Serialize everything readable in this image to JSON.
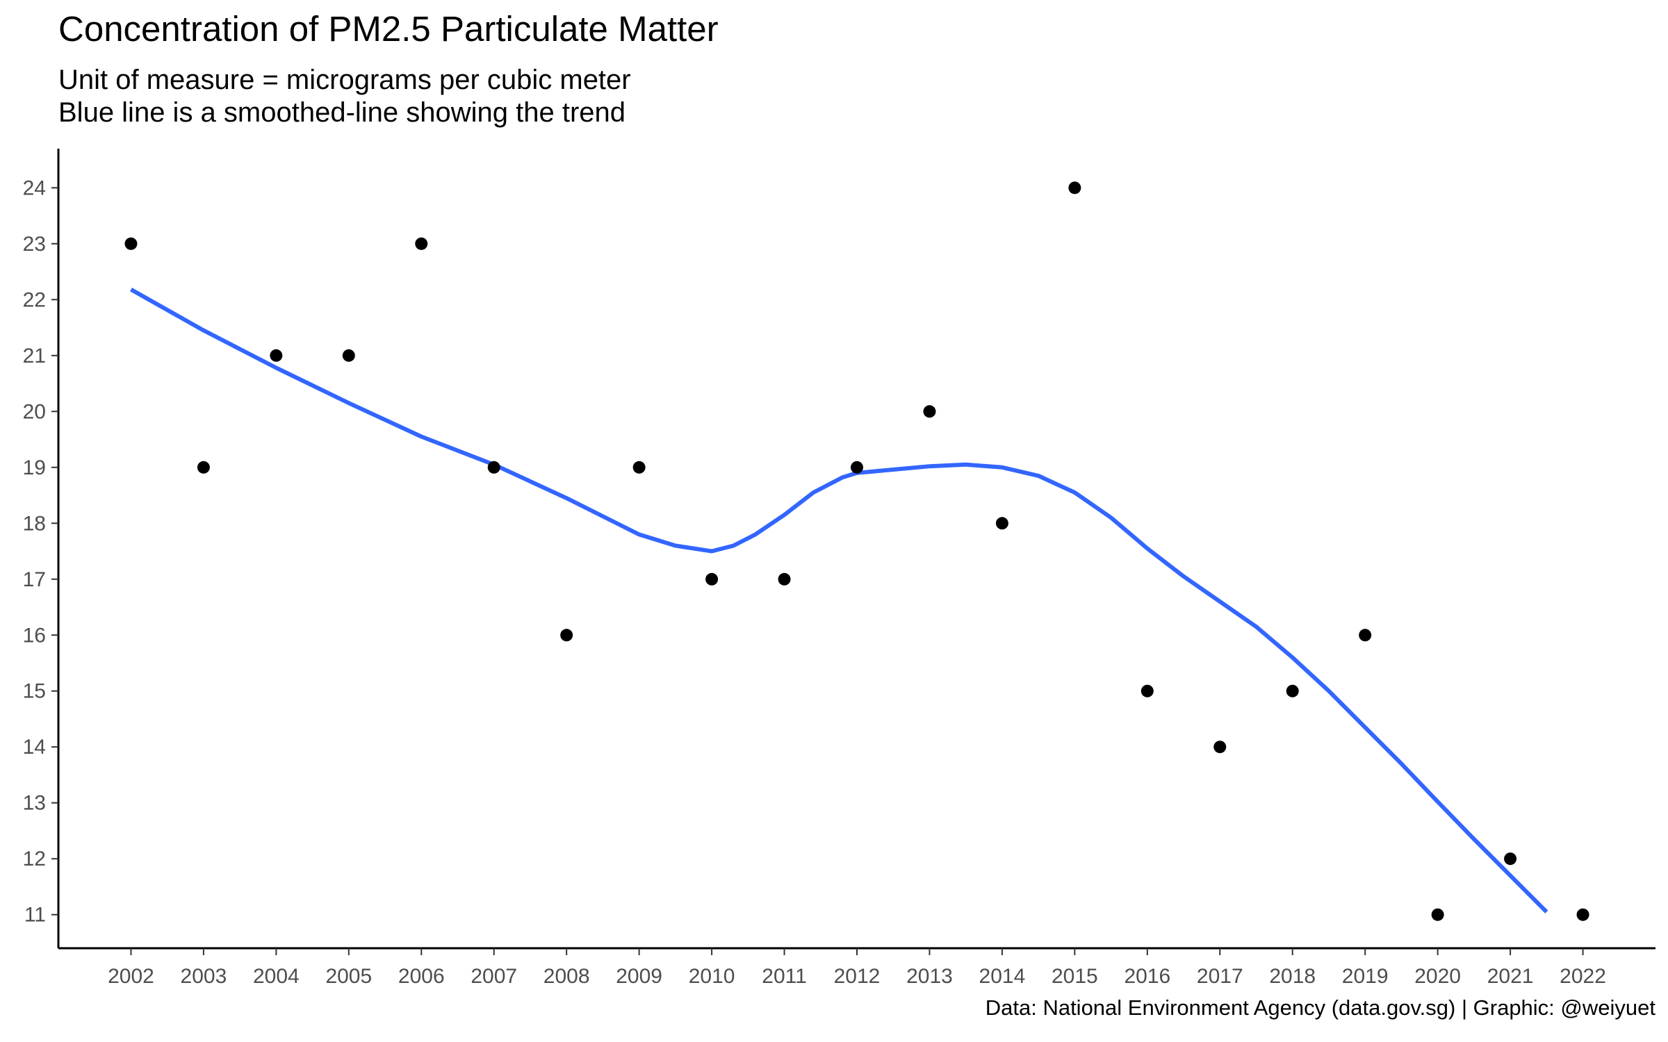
{
  "chart_data": {
    "type": "scatter",
    "title": "Concentration of PM2.5 Particulate Matter",
    "subtitle_lines": [
      "Unit of measure = micrograms per cubic meter",
      "Blue line is a smoothed-line showing the trend"
    ],
    "caption": "Data: National Environment Agency (data.gov.sg) | Graphic: @weiyuet",
    "xlabel": "",
    "ylabel": "",
    "x_ticks": [
      "2002",
      "2003",
      "2004",
      "2005",
      "2006",
      "2007",
      "2008",
      "2009",
      "2010",
      "2011",
      "2012",
      "2013",
      "2014",
      "2015",
      "2016",
      "2017",
      "2018",
      "2019",
      "2020",
      "2021",
      "2022"
    ],
    "y_ticks": [
      11,
      12,
      13,
      14,
      15,
      16,
      17,
      18,
      19,
      20,
      21,
      22,
      23,
      24
    ],
    "xlim": [
      2001,
      2023
    ],
    "ylim": [
      10.4,
      24.7
    ],
    "grid": false,
    "series": [
      {
        "values": [
          {
            "x": 2002,
            "y": 23
          },
          {
            "x": 2003,
            "y": 19
          },
          {
            "x": 2004,
            "y": 21
          },
          {
            "x": 2005,
            "y": 21
          },
          {
            "x": 2006,
            "y": 23
          },
          {
            "x": 2007,
            "y": 19
          },
          {
            "x": 2008,
            "y": 16
          },
          {
            "x": 2009,
            "y": 19
          },
          {
            "x": 2010,
            "y": 17
          },
          {
            "x": 2011,
            "y": 17
          },
          {
            "x": 2012,
            "y": 19
          },
          {
            "x": 2013,
            "y": 20
          },
          {
            "x": 2014,
            "y": 18
          },
          {
            "x": 2015,
            "y": 24
          },
          {
            "x": 2016,
            "y": 15
          },
          {
            "x": 2017,
            "y": 14
          },
          {
            "x": 2018,
            "y": 15
          },
          {
            "x": 2019,
            "y": 16
          },
          {
            "x": 2020,
            "y": 11
          },
          {
            "x": 2021,
            "y": 12
          },
          {
            "x": 2022,
            "y": 11
          }
        ],
        "color": "#000000"
      }
    ],
    "trend_line": {
      "color": "#3366ff",
      "points": [
        {
          "x": 2002,
          "y": 22.18
        },
        {
          "x": 2003,
          "y": 21.45
        },
        {
          "x": 2004,
          "y": 20.78
        },
        {
          "x": 2005,
          "y": 20.15
        },
        {
          "x": 2006,
          "y": 19.55
        },
        {
          "x": 2007,
          "y": 19.05
        },
        {
          "x": 2008,
          "y": 18.45
        },
        {
          "x": 2009,
          "y": 17.8
        },
        {
          "x": 2009.5,
          "y": 17.6
        },
        {
          "x": 2010,
          "y": 17.5
        },
        {
          "x": 2010.3,
          "y": 17.6
        },
        {
          "x": 2010.6,
          "y": 17.8
        },
        {
          "x": 2011,
          "y": 18.15
        },
        {
          "x": 2011.4,
          "y": 18.55
        },
        {
          "x": 2011.8,
          "y": 18.82
        },
        {
          "x": 2012,
          "y": 18.9
        },
        {
          "x": 2012.5,
          "y": 18.96
        },
        {
          "x": 2013,
          "y": 19.02
        },
        {
          "x": 2013.5,
          "y": 19.05
        },
        {
          "x": 2014,
          "y": 19.0
        },
        {
          "x": 2014.5,
          "y": 18.85
        },
        {
          "x": 2015,
          "y": 18.55
        },
        {
          "x": 2015.5,
          "y": 18.1
        },
        {
          "x": 2016,
          "y": 17.55
        },
        {
          "x": 2016.5,
          "y": 17.05
        },
        {
          "x": 2017,
          "y": 16.6
        },
        {
          "x": 2017.5,
          "y": 16.15
        },
        {
          "x": 2018,
          "y": 15.6
        },
        {
          "x": 2018.5,
          "y": 15.0
        },
        {
          "x": 2019,
          "y": 14.35
        },
        {
          "x": 2019.5,
          "y": 13.7
        },
        {
          "x": 2020,
          "y": 13.02
        },
        {
          "x": 2020.5,
          "y": 12.35
        },
        {
          "x": 2021,
          "y": 11.7
        },
        {
          "x": 2021.5,
          "y": 11.05
        }
      ]
    }
  }
}
